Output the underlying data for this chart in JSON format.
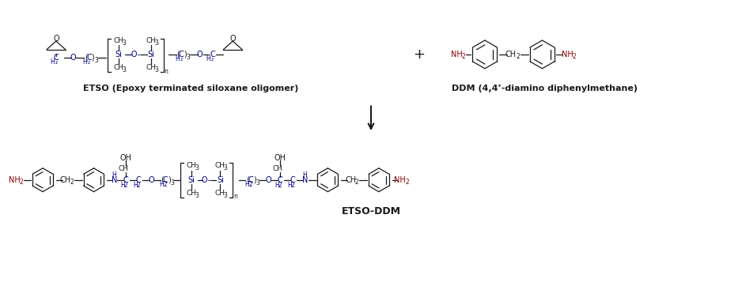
{
  "background": "#ffffff",
  "text_color_black": "#1a1a1a",
  "text_color_blue": "#00008B",
  "text_color_dark_red": "#8B0000",
  "label_etso": "ETSO (Epoxy terminated siloxane oligomer)",
  "label_ddm": "DDM (4,4’-diamino diphenylmethane)",
  "label_product": "ETSO-DDM"
}
